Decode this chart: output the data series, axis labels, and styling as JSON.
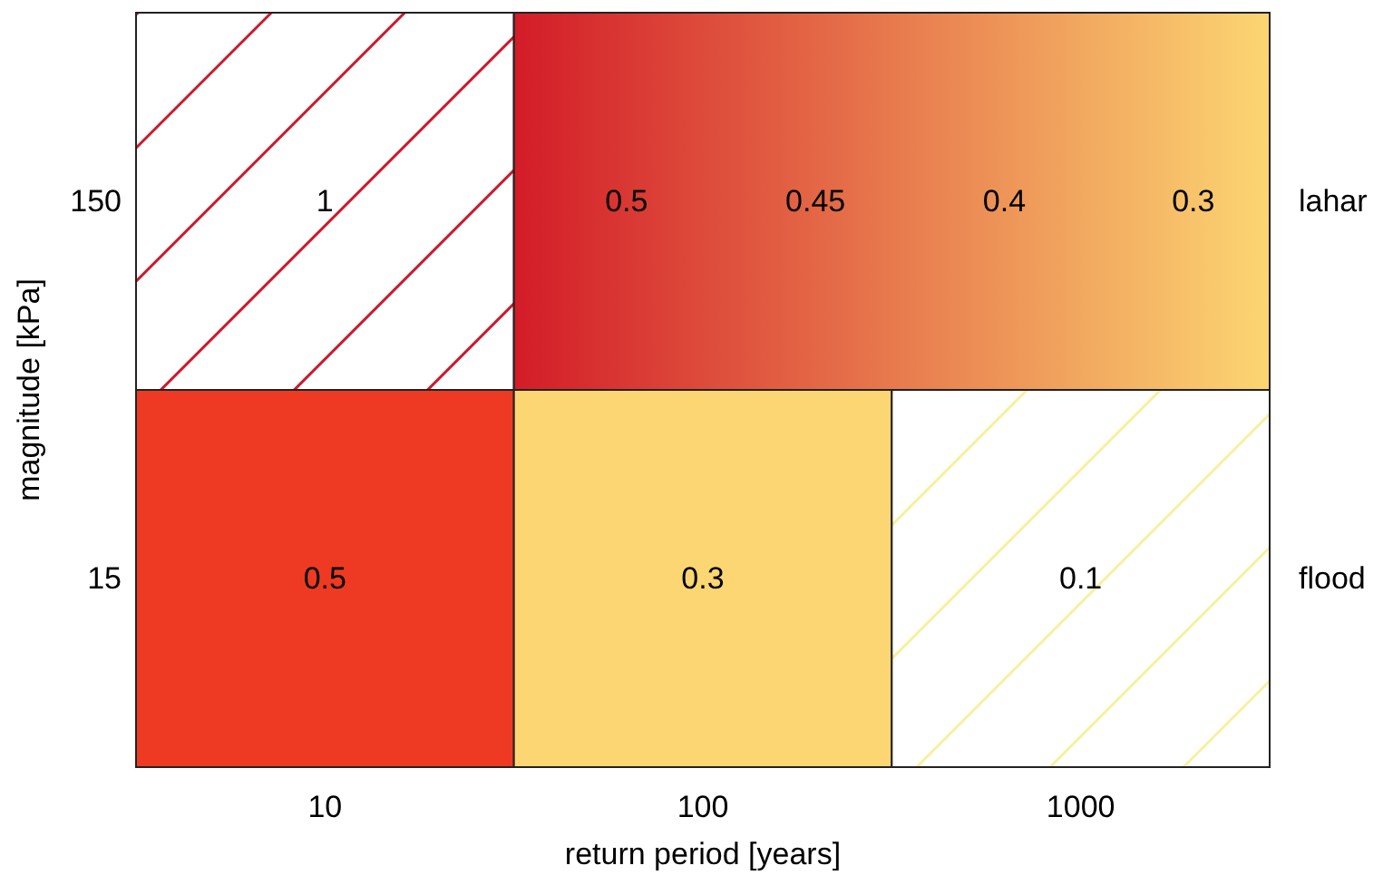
{
  "chart_data": {
    "type": "heatmap",
    "xlabel": "return period [years]",
    "ylabel": "magnitude [kPa]",
    "categories": [
      "10",
      "100",
      "1000"
    ],
    "y_categories": [
      "150",
      "15"
    ],
    "y2_categories": [
      "lahar",
      "flood"
    ],
    "cells": [
      [
        1,
        null,
        null
      ],
      [
        0.5,
        0.3,
        0.1
      ]
    ],
    "data_labels": true,
    "colors": [
      [
        "#cc1a2c",
        "#d31c28",
        "#fcd672"
      ],
      [
        "#ee3a22",
        "#fbd672",
        "#f7f0a0"
      ]
    ],
    "annotations": [
      "0.5",
      "0.45",
      "0.4",
      "0.3"
    ]
  }
}
